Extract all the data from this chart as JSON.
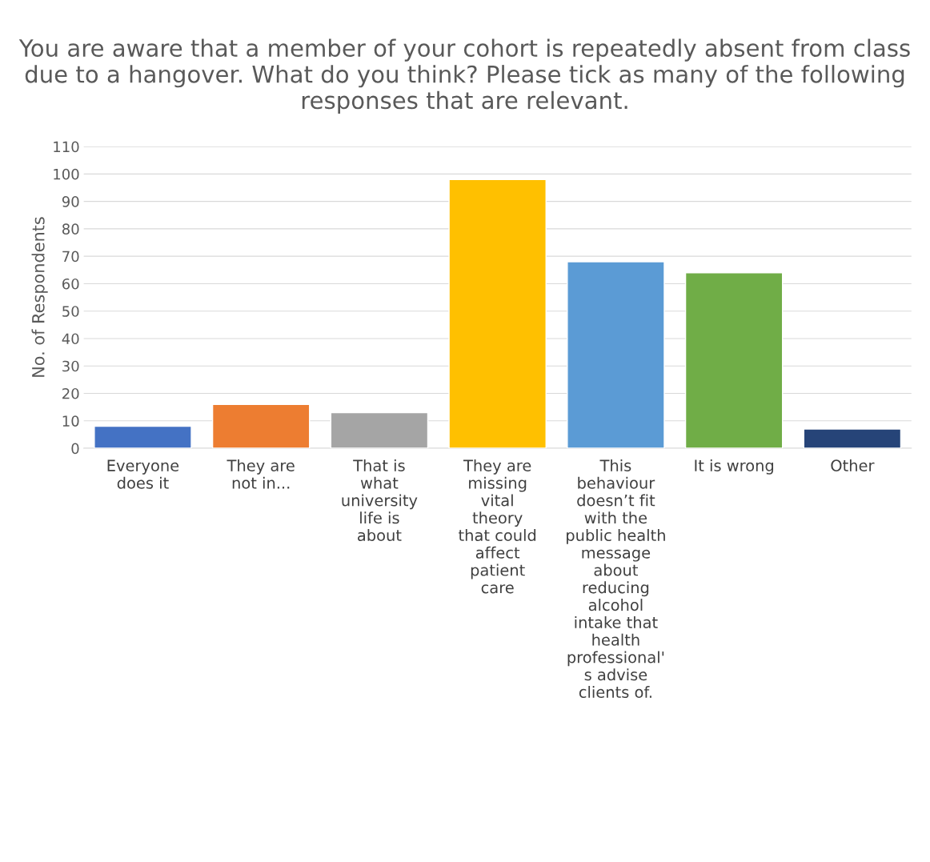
{
  "chart_data": {
    "type": "bar",
    "title": "You are aware that a member of your cohort is repeatedly absent from class due to a hangover. What do you think? Please tick as many of the following responses that are relevant.",
    "ylabel": "No. of Respondents",
    "categories": [
      "Everyone\ndoes it",
      "They are\nnot in...",
      "That is\nwhat\nuniversity\nlife is\nabout",
      "They are\nmissing\nvital\ntheory\nthat could\naffect\npatient\ncare",
      "This\nbehaviour\ndoesn’t fit\nwith the\npublic health\nmessage\nabout\nreducing\nalcohol\nintake that\nhealth\nprofessional'\ns advise\nclients of.",
      "It is wrong",
      "Other"
    ],
    "values": [
      8,
      16,
      13,
      98,
      68,
      64,
      7
    ],
    "colors": [
      "#4472c4",
      "#ed7d31",
      "#a5a5a5",
      "#ffc000",
      "#5b9bd5",
      "#70ad47",
      "#264478"
    ],
    "ylim": [
      0,
      110
    ],
    "yticks": [
      0,
      10,
      20,
      30,
      40,
      50,
      60,
      70,
      80,
      90,
      100,
      110
    ],
    "grid": "y"
  }
}
